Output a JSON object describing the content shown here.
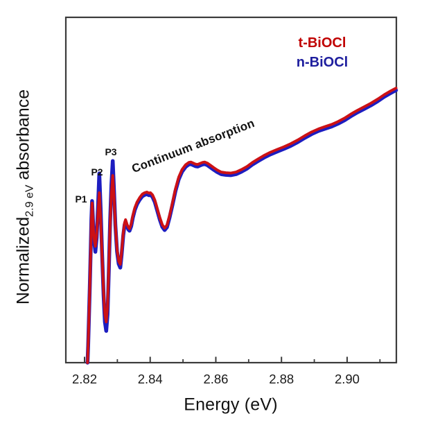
{
  "chart_data": {
    "type": "line",
    "title": "",
    "xlabel": "Energy (eV)",
    "ylabel": {
      "main": "Normalized",
      "sub": "2.9 eV",
      "rest": " absorbance"
    },
    "xlim": [
      2.8143,
      2.915
    ],
    "ylim": [
      0,
      1
    ],
    "x_major_ticks": [
      2.82,
      2.84,
      2.86,
      2.88,
      2.9
    ],
    "x_tick_labels": [
      "2.82",
      "2.84",
      "2.86",
      "2.88",
      "2.90"
    ],
    "x_minor_ticks": [
      2.83,
      2.85,
      2.87,
      2.89,
      2.91
    ],
    "y_ticks_shown": false,
    "grid": false,
    "frame_color": "#3b3b3b",
    "legend": {
      "position": "top-right",
      "entries": [
        {
          "label": "t-BiOCl",
          "color": "#c00000"
        },
        {
          "label": "n-BiOCl",
          "color": "#1e1e9e"
        }
      ]
    },
    "annotations": {
      "continuum": {
        "text": "Continuum absorption",
        "rotation_deg": -21
      },
      "peaks": [
        {
          "label": "P1",
          "x": 2.8223
        },
        {
          "label": "P2",
          "x": 2.8245
        },
        {
          "label": "P3",
          "x": 2.8286
        }
      ]
    },
    "series": [
      {
        "name": "t-BiOCl",
        "color": "#cc1115",
        "line_width": 4,
        "points": [
          [
            2.8209,
            0.0
          ],
          [
            2.8211,
            0.05
          ],
          [
            2.8213,
            0.12
          ],
          [
            2.8216,
            0.22
          ],
          [
            2.8219,
            0.33
          ],
          [
            2.8221,
            0.41
          ],
          [
            2.8223,
            0.462
          ],
          [
            2.8226,
            0.405
          ],
          [
            2.8229,
            0.36
          ],
          [
            2.8233,
            0.337
          ],
          [
            2.8237,
            0.372
          ],
          [
            2.8241,
            0.432
          ],
          [
            2.8245,
            0.492
          ],
          [
            2.8249,
            0.42
          ],
          [
            2.8253,
            0.32
          ],
          [
            2.8258,
            0.205
          ],
          [
            2.8262,
            0.14
          ],
          [
            2.8266,
            0.118
          ],
          [
            2.827,
            0.16
          ],
          [
            2.8274,
            0.28
          ],
          [
            2.8278,
            0.4
          ],
          [
            2.8282,
            0.49
          ],
          [
            2.8286,
            0.542
          ],
          [
            2.829,
            0.478
          ],
          [
            2.8294,
            0.398
          ],
          [
            2.8299,
            0.328
          ],
          [
            2.8304,
            0.294
          ],
          [
            2.8309,
            0.285
          ],
          [
            2.8313,
            0.32
          ],
          [
            2.8318,
            0.376
          ],
          [
            2.8322,
            0.405
          ],
          [
            2.8325,
            0.414
          ],
          [
            2.833,
            0.399
          ],
          [
            2.8334,
            0.391
          ],
          [
            2.8337,
            0.388
          ],
          [
            2.8342,
            0.401
          ],
          [
            2.8347,
            0.425
          ],
          [
            2.8353,
            0.448
          ],
          [
            2.836,
            0.465
          ],
          [
            2.8368,
            0.478
          ],
          [
            2.8376,
            0.488
          ],
          [
            2.8383,
            0.492
          ],
          [
            2.839,
            0.494
          ],
          [
            2.8396,
            0.491
          ],
          [
            2.8401,
            0.492
          ],
          [
            2.8407,
            0.486
          ],
          [
            2.8414,
            0.471
          ],
          [
            2.8421,
            0.448
          ],
          [
            2.8429,
            0.421
          ],
          [
            2.8437,
            0.399
          ],
          [
            2.8444,
            0.39
          ],
          [
            2.8451,
            0.398
          ],
          [
            2.8459,
            0.426
          ],
          [
            2.8468,
            0.463
          ],
          [
            2.8477,
            0.503
          ],
          [
            2.8487,
            0.537
          ],
          [
            2.8497,
            0.559
          ],
          [
            2.8508,
            0.573
          ],
          [
            2.8518,
            0.58
          ],
          [
            2.8524,
            0.581
          ],
          [
            2.8531,
            0.578
          ],
          [
            2.8538,
            0.575
          ],
          [
            2.8545,
            0.574
          ],
          [
            2.8552,
            0.577
          ],
          [
            2.856,
            0.58
          ],
          [
            2.8566,
            0.581
          ],
          [
            2.8574,
            0.578
          ],
          [
            2.8583,
            0.572
          ],
          [
            2.8593,
            0.565
          ],
          [
            2.8604,
            0.558
          ],
          [
            2.8616,
            0.552
          ],
          [
            2.863,
            0.55
          ],
          [
            2.8646,
            0.549
          ],
          [
            2.8662,
            0.552
          ],
          [
            2.8678,
            0.559
          ],
          [
            2.8695,
            0.568
          ],
          [
            2.8712,
            0.58
          ],
          [
            2.8729,
            0.59
          ],
          [
            2.8747,
            0.6
          ],
          [
            2.8766,
            0.609
          ],
          [
            2.8786,
            0.617
          ],
          [
            2.8807,
            0.625
          ],
          [
            2.8828,
            0.634
          ],
          [
            2.885,
            0.645
          ],
          [
            2.8871,
            0.657
          ],
          [
            2.8892,
            0.668
          ],
          [
            2.8913,
            0.677
          ],
          [
            2.8934,
            0.684
          ],
          [
            2.8953,
            0.69
          ],
          [
            2.8972,
            0.698
          ],
          [
            2.8992,
            0.708
          ],
          [
            2.9012,
            0.72
          ],
          [
            2.9032,
            0.731
          ],
          [
            2.9052,
            0.741
          ],
          [
            2.9072,
            0.751
          ],
          [
            2.9093,
            0.763
          ],
          [
            2.9113,
            0.776
          ],
          [
            2.9133,
            0.787
          ],
          [
            2.9149,
            0.795
          ]
        ]
      },
      {
        "name": "n-BiOCl",
        "color": "#1d1dc0",
        "line_width": 5.5,
        "points": [
          [
            2.8209,
            0.0
          ],
          [
            2.8211,
            0.048
          ],
          [
            2.8213,
            0.118
          ],
          [
            2.8216,
            0.22
          ],
          [
            2.8219,
            0.335
          ],
          [
            2.8221,
            0.415
          ],
          [
            2.8223,
            0.468
          ],
          [
            2.8226,
            0.408
          ],
          [
            2.8229,
            0.356
          ],
          [
            2.8233,
            0.321
          ],
          [
            2.8237,
            0.362
          ],
          [
            2.8241,
            0.448
          ],
          [
            2.8245,
            0.548
          ],
          [
            2.8249,
            0.448
          ],
          [
            2.8253,
            0.33
          ],
          [
            2.8258,
            0.195
          ],
          [
            2.8262,
            0.118
          ],
          [
            2.8266,
            0.092
          ],
          [
            2.827,
            0.14
          ],
          [
            2.8274,
            0.27
          ],
          [
            2.8278,
            0.408
          ],
          [
            2.8282,
            0.515
          ],
          [
            2.8286,
            0.584
          ],
          [
            2.829,
            0.495
          ],
          [
            2.8294,
            0.398
          ],
          [
            2.8299,
            0.322
          ],
          [
            2.8304,
            0.286
          ],
          [
            2.8309,
            0.275
          ],
          [
            2.8313,
            0.312
          ],
          [
            2.8318,
            0.369
          ],
          [
            2.8322,
            0.399
          ],
          [
            2.8325,
            0.408
          ],
          [
            2.833,
            0.393
          ],
          [
            2.8334,
            0.385
          ],
          [
            2.8337,
            0.382
          ],
          [
            2.8342,
            0.395
          ],
          [
            2.8347,
            0.419
          ],
          [
            2.8353,
            0.442
          ],
          [
            2.836,
            0.459
          ],
          [
            2.8368,
            0.472
          ],
          [
            2.8376,
            0.482
          ],
          [
            2.8383,
            0.486
          ],
          [
            2.839,
            0.488
          ],
          [
            2.8396,
            0.485
          ],
          [
            2.8401,
            0.486
          ],
          [
            2.8407,
            0.48
          ],
          [
            2.8414,
            0.465
          ],
          [
            2.8421,
            0.442
          ],
          [
            2.8429,
            0.415
          ],
          [
            2.8437,
            0.393
          ],
          [
            2.8444,
            0.384
          ],
          [
            2.8451,
            0.392
          ],
          [
            2.8459,
            0.42
          ],
          [
            2.8468,
            0.457
          ],
          [
            2.8477,
            0.497
          ],
          [
            2.8487,
            0.531
          ],
          [
            2.8497,
            0.553
          ],
          [
            2.8508,
            0.567
          ],
          [
            2.8518,
            0.574
          ],
          [
            2.8524,
            0.575
          ],
          [
            2.8531,
            0.572
          ],
          [
            2.8538,
            0.569
          ],
          [
            2.8545,
            0.568
          ],
          [
            2.8552,
            0.571
          ],
          [
            2.856,
            0.574
          ],
          [
            2.8566,
            0.575
          ],
          [
            2.8574,
            0.572
          ],
          [
            2.8583,
            0.566
          ],
          [
            2.8593,
            0.559
          ],
          [
            2.8604,
            0.552
          ],
          [
            2.8616,
            0.546
          ],
          [
            2.863,
            0.544
          ],
          [
            2.8646,
            0.543
          ],
          [
            2.8662,
            0.546
          ],
          [
            2.8678,
            0.553
          ],
          [
            2.8695,
            0.562
          ],
          [
            2.8712,
            0.574
          ],
          [
            2.8729,
            0.584
          ],
          [
            2.8747,
            0.594
          ],
          [
            2.8766,
            0.603
          ],
          [
            2.8786,
            0.611
          ],
          [
            2.8807,
            0.619
          ],
          [
            2.8828,
            0.628
          ],
          [
            2.885,
            0.639
          ],
          [
            2.8871,
            0.651
          ],
          [
            2.8892,
            0.662
          ],
          [
            2.8913,
            0.671
          ],
          [
            2.8934,
            0.678
          ],
          [
            2.8953,
            0.684
          ],
          [
            2.8972,
            0.692
          ],
          [
            2.8992,
            0.702
          ],
          [
            2.9012,
            0.714
          ],
          [
            2.9032,
            0.725
          ],
          [
            2.9052,
            0.735
          ],
          [
            2.9072,
            0.745
          ],
          [
            2.9093,
            0.757
          ],
          [
            2.9113,
            0.77
          ],
          [
            2.9133,
            0.781
          ],
          [
            2.9149,
            0.789
          ]
        ]
      }
    ]
  }
}
